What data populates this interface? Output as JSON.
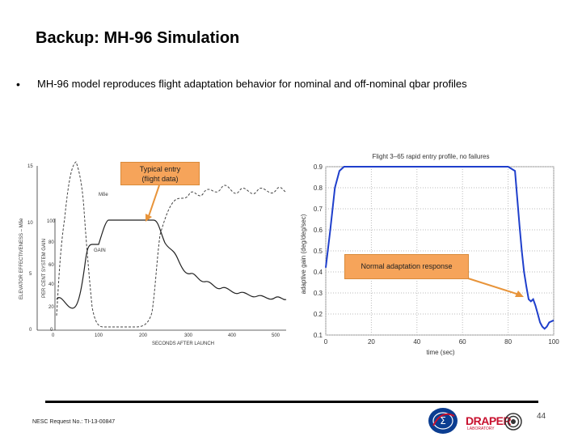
{
  "slide": {
    "title": "Backup: MH-96 Simulation",
    "bullet": "MH-96 model reproduces flight adaptation behavior for nominal and off-nominal qbar profiles",
    "footer": "NESC Request No.: TI-13-00847",
    "page_number": "44"
  },
  "callouts": {
    "typical_entry_line1": "Typical entry",
    "typical_entry_line2": "(flight data)",
    "normal_adaptation": "Normal adaptation response"
  },
  "logos": {
    "draper": "DRAPER",
    "draper_sub": "LABORATORY"
  },
  "left_chart": {
    "ylabel_outer": "ELEVATOR EFFECTIVENESS – Mδe",
    "ylabel_inner": "PER CENT SYSTEM GAIN",
    "xlabel": "SECONDS AFTER LAUNCH",
    "outer_ticks": [
      "15",
      "10",
      "5",
      "0"
    ],
    "inner_ticks": [
      "100",
      "80",
      "60",
      "40",
      "20",
      "0"
    ],
    "x_ticks": [
      "0",
      "100",
      "200",
      "300",
      "400",
      "500"
    ],
    "label_mde": "Mδe",
    "label_gain": "GAIN"
  },
  "chart_data": {
    "type": "line",
    "title": "Flight 3–65 rapid entry profile, no failures",
    "xlabel": "time (sec)",
    "ylabel": "adaptive gain (deg/deg/sec)",
    "xlim": [
      0,
      100
    ],
    "ylim": [
      0.1,
      0.9
    ],
    "x_ticks": [
      "0",
      "20",
      "40",
      "60",
      "80",
      "100"
    ],
    "y_ticks": [
      "0.1",
      "0.2",
      "0.3",
      "0.4",
      "0.5",
      "0.6",
      "0.7",
      "0.8",
      "0.9"
    ],
    "grid": true,
    "color": "#1f3fcc",
    "x": [
      0,
      2,
      4,
      6,
      8,
      40,
      80,
      83,
      84,
      85,
      86,
      87,
      88,
      89,
      90,
      91,
      92,
      93,
      94,
      95,
      96,
      97,
      98,
      100
    ],
    "y": [
      0.42,
      0.6,
      0.8,
      0.88,
      0.9,
      0.9,
      0.9,
      0.88,
      0.75,
      0.62,
      0.5,
      0.4,
      0.33,
      0.27,
      0.26,
      0.27,
      0.24,
      0.2,
      0.16,
      0.14,
      0.13,
      0.14,
      0.16,
      0.17
    ]
  }
}
